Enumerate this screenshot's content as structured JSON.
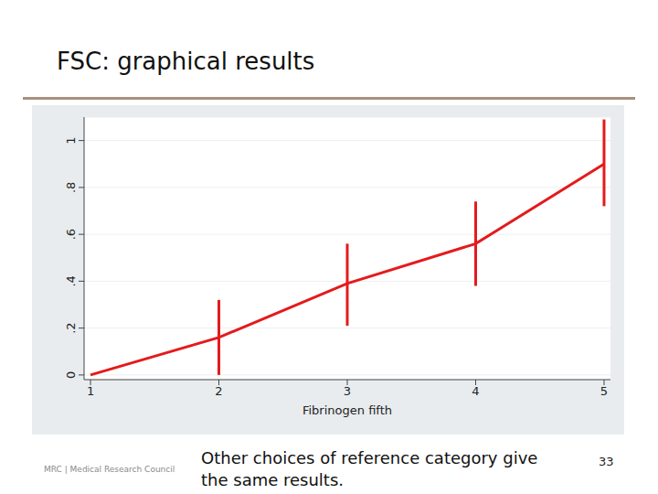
{
  "chart_data": {
    "type": "line",
    "title": "FSC: graphical results",
    "x_label": "Fibrinogen fifth",
    "x": [
      1,
      2,
      3,
      4,
      5
    ],
    "values": [
      0,
      0.16,
      0.39,
      0.56,
      0.9
    ],
    "lower": [
      null,
      0.0,
      0.21,
      0.38,
      0.72
    ],
    "upper": [
      null,
      0.32,
      0.56,
      0.74,
      1.09
    ],
    "color": "#e41a1c",
    "xlim": [
      0.95,
      5.05
    ],
    "xticks": [
      1,
      2,
      3,
      4,
      5
    ],
    "ylim": [
      -0.02,
      1.1
    ],
    "yticks": [
      0,
      {
        "value": 0.2,
        "label": ".2"
      },
      {
        "value": 0.4,
        "label": ".4"
      },
      {
        "value": 0.6,
        "label": ".6"
      },
      {
        "value": 0.8,
        "label": ".8"
      },
      1
    ],
    "grid": true,
    "footnote": "Other choices of reference category give the same results.",
    "page_number": "33",
    "logo": "MRC | Medical Research Council"
  }
}
